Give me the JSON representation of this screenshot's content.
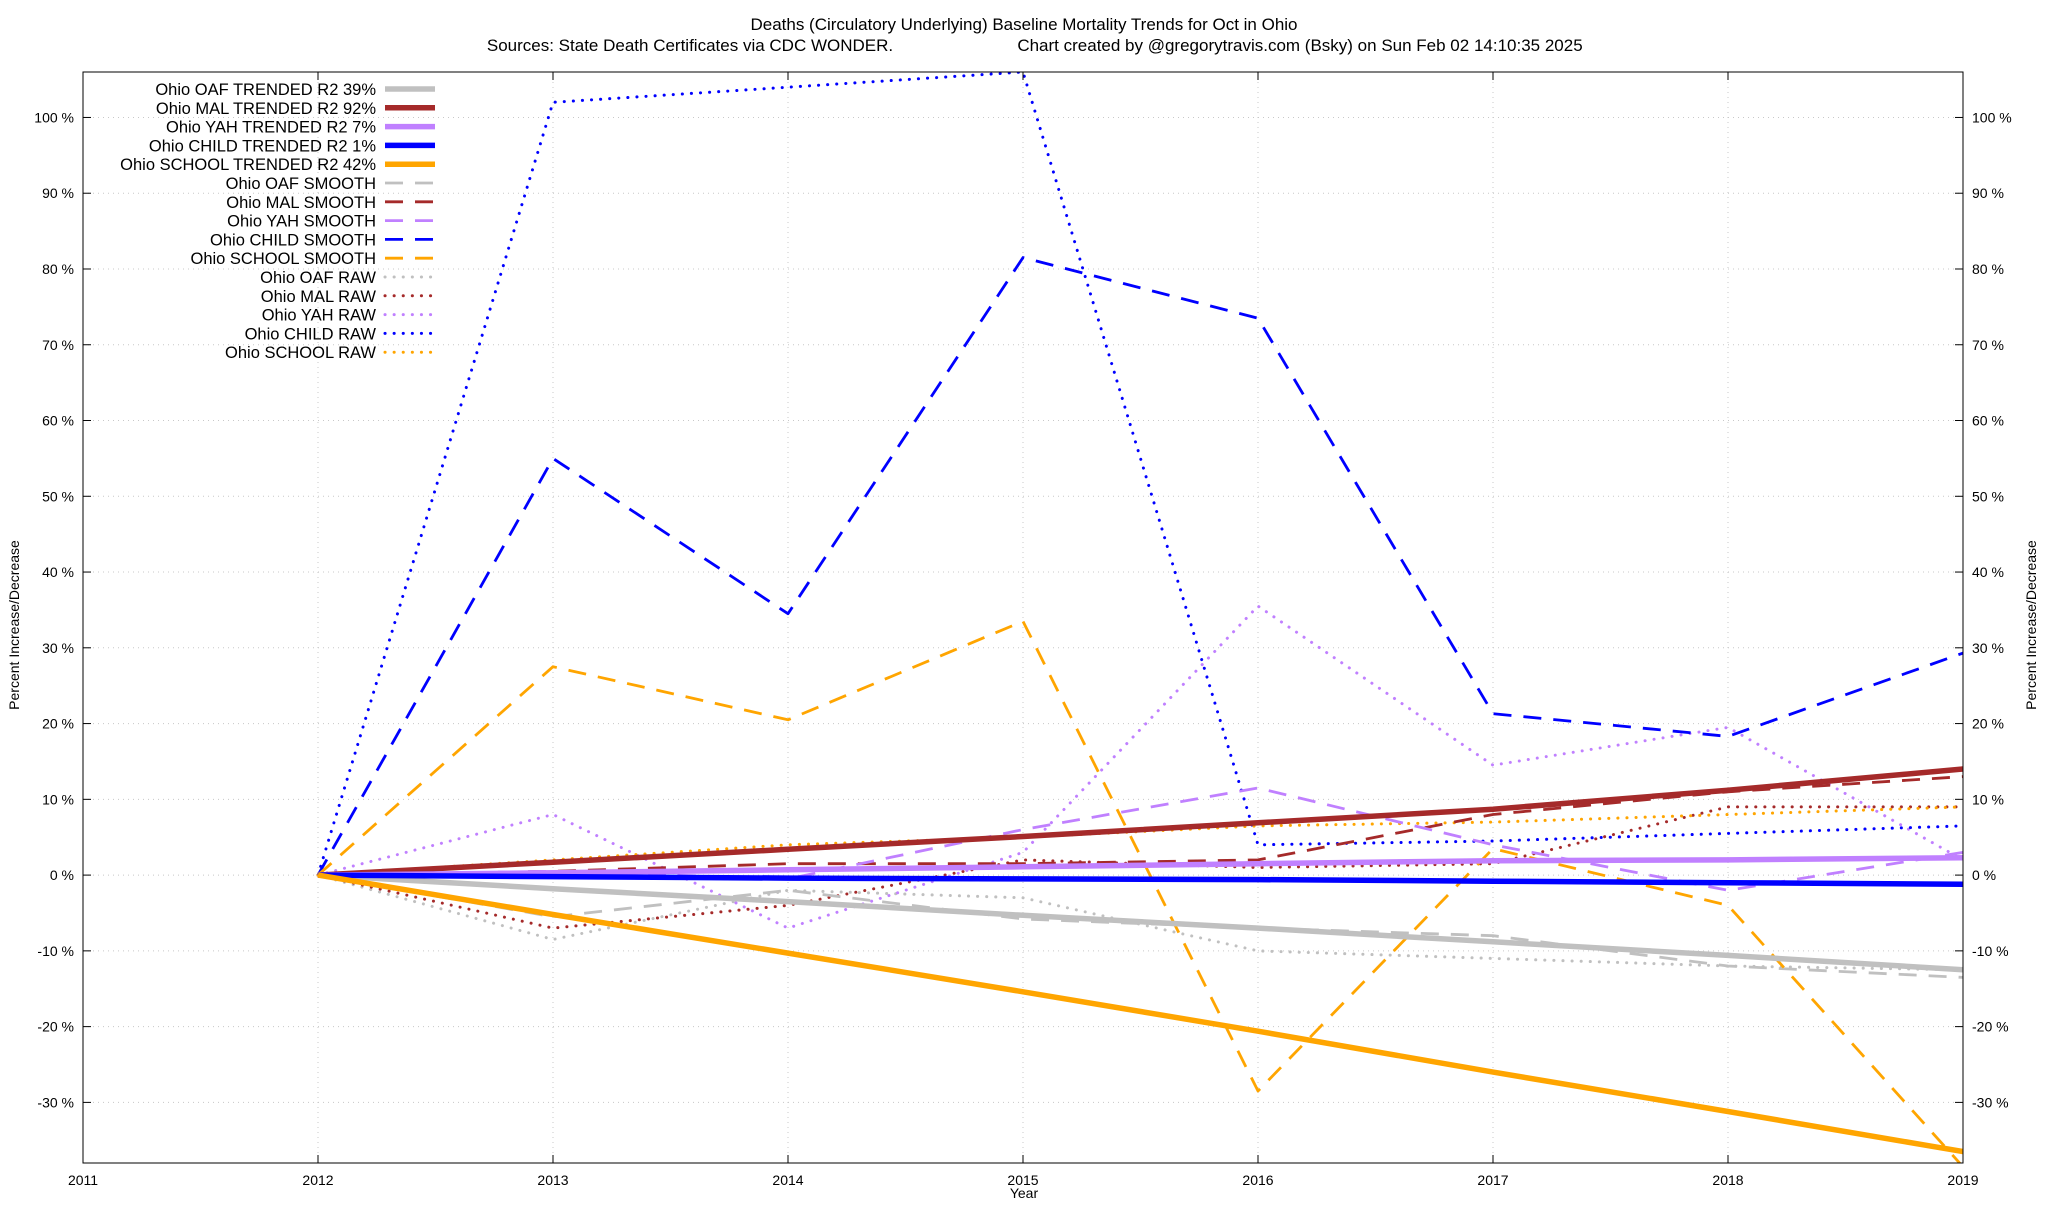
{
  "chart_data": {
    "type": "line",
    "title_line1": "Deaths (Circulatory Underlying)  Baseline Mortality Trends for Oct in Ohio",
    "title_line2_left": "Sources: State Death Certificates via CDC WONDER.",
    "title_line2_right": "Chart created by @gregorytravis.com (Bsky) on Sun Feb 02 14:10:35 2025",
    "xlabel": "Year",
    "ylabel_left": "Percent Increase/Decrease",
    "ylabel_right": "Percent Increase/Decrease",
    "xlim": [
      2011,
      2019
    ],
    "ylim": [
      -38,
      106
    ],
    "x_ticks": [
      2011,
      2012,
      2013,
      2014,
      2015,
      2016,
      2017,
      2018,
      2019
    ],
    "y_ticks": [
      -30,
      -20,
      -10,
      0,
      10,
      20,
      30,
      40,
      50,
      60,
      70,
      80,
      90,
      100
    ],
    "y_tick_suffix": " %",
    "grid": true,
    "legend_position": "top-left",
    "x": [
      2012,
      2013,
      2014,
      2015,
      2016,
      2017,
      2018,
      2019
    ],
    "series": [
      {
        "name": "Ohio OAF TRENDED R2  39%",
        "style": "trended",
        "color": "#c0c0c0",
        "values": [
          0,
          -1.8,
          -3.5,
          -5.3,
          -7.0,
          -8.8,
          -10.6,
          -12.5
        ]
      },
      {
        "name": "Ohio MAL TRENDED R2  92%",
        "style": "trended",
        "color": "#a52a2a",
        "values": [
          0,
          1.7,
          3.4,
          5.1,
          6.9,
          8.7,
          11.2,
          14.0
        ]
      },
      {
        "name": "Ohio YAH TRENDED R2   7%",
        "style": "trended",
        "color": "#c080ff",
        "values": [
          0,
          0.3,
          0.7,
          1.1,
          1.5,
          1.9,
          2.0,
          2.3
        ]
      },
      {
        "name": "Ohio CHILD TRENDED R2   1%",
        "style": "trended",
        "color": "#0000ff",
        "values": [
          0,
          -0.2,
          -0.4,
          -0.5,
          -0.6,
          -0.8,
          -1.0,
          -1.2
        ]
      },
      {
        "name": "Ohio SCHOOL TRENDED R2  42%",
        "style": "trended",
        "color": "#ffa500",
        "values": [
          0,
          -5.2,
          -10.3,
          -15.4,
          -20.6,
          -26.0,
          -31.2,
          -36.5
        ]
      },
      {
        "name": "Ohio OAF SMOOTH",
        "style": "smooth",
        "color": "#c0c0c0",
        "values": [
          0,
          -5.5,
          -2.0,
          -5.8,
          -7.0,
          -8.0,
          -12.0,
          -13.5
        ]
      },
      {
        "name": "Ohio MAL SMOOTH",
        "style": "smooth",
        "color": "#a52a2a",
        "values": [
          0,
          0.5,
          1.5,
          1.5,
          2.0,
          8.0,
          11.0,
          13.0
        ]
      },
      {
        "name": "Ohio YAH SMOOTH",
        "style": "smooth",
        "color": "#c080ff",
        "values": [
          0,
          0.5,
          -0.5,
          6.0,
          11.5,
          4.0,
          -2.0,
          3.0
        ]
      },
      {
        "name": "Ohio CHILD SMOOTH",
        "style": "smooth",
        "color": "#0000ff",
        "values": [
          0,
          55.0,
          34.5,
          81.5,
          73.5,
          21.3,
          18.3,
          29.3
        ]
      },
      {
        "name": "Ohio SCHOOL SMOOTH",
        "style": "smooth",
        "color": "#ffa500",
        "values": [
          0,
          27.5,
          20.5,
          33.5,
          -28.5,
          3.5,
          -4.0,
          -38.5
        ]
      },
      {
        "name": "Ohio OAF RAW",
        "style": "raw",
        "color": "#c0c0c0",
        "values": [
          0,
          -8.5,
          -2.0,
          -3.0,
          -10.0,
          -11.0,
          -12.0,
          -12.5
        ]
      },
      {
        "name": "Ohio MAL RAW",
        "style": "raw",
        "color": "#a52a2a",
        "values": [
          0,
          -7.0,
          -4.0,
          2.0,
          1.0,
          1.5,
          9.0,
          9.0
        ]
      },
      {
        "name": "Ohio YAH RAW",
        "style": "raw",
        "color": "#c080ff",
        "values": [
          0,
          8.0,
          -7.0,
          3.0,
          35.5,
          14.5,
          19.5,
          2.0
        ]
      },
      {
        "name": "Ohio CHILD RAW",
        "style": "raw",
        "color": "#0000ff",
        "values": [
          0,
          102.0,
          104.0,
          106.0,
          4.0,
          4.5,
          5.5,
          6.5
        ]
      },
      {
        "name": "Ohio SCHOOL RAW",
        "style": "raw",
        "color": "#ffa500",
        "values": [
          0,
          2.0,
          4.0,
          5.0,
          6.5,
          7.0,
          8.0,
          9.0
        ]
      }
    ]
  }
}
